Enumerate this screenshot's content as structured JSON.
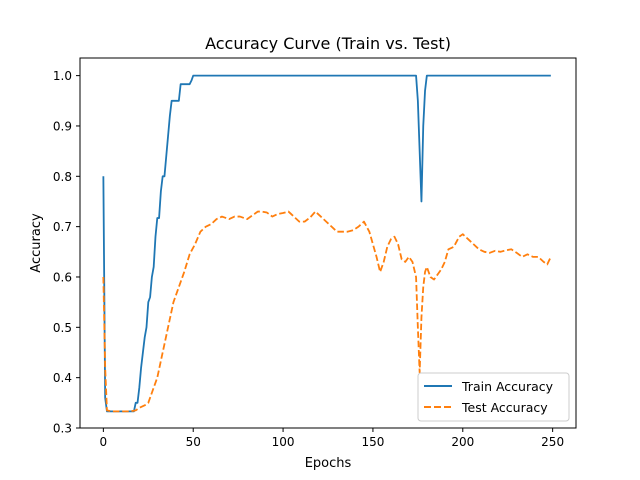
{
  "chart_data": {
    "type": "line",
    "title": "Accuracy Curve (Train vs. Test)",
    "xlabel": "Epochs",
    "ylabel": "Accuracy",
    "xlim": [
      -13,
      263
    ],
    "ylim": [
      0.3,
      1.035
    ],
    "xticks": [
      0,
      50,
      100,
      150,
      200,
      250
    ],
    "yticks": [
      0.3,
      0.4,
      0.5,
      0.6,
      0.7,
      0.8,
      0.9,
      1.0
    ],
    "xtick_labels": [
      "0",
      "50",
      "100",
      "150",
      "200",
      "250"
    ],
    "ytick_labels": [
      "0.3",
      "0.4",
      "0.5",
      "0.6",
      "0.7",
      "0.8",
      "0.9",
      "1.0"
    ],
    "grid": false,
    "legend_position": "lower-right",
    "series": [
      {
        "name": "Train Accuracy",
        "color": "#1f77b4",
        "style": "solid",
        "points": [
          [
            0,
            0.8
          ],
          [
            1,
            0.36
          ],
          [
            2,
            0.333
          ],
          [
            5,
            0.333
          ],
          [
            10,
            0.333
          ],
          [
            15,
            0.333
          ],
          [
            17,
            0.333
          ],
          [
            18,
            0.35
          ],
          [
            19,
            0.35
          ],
          [
            20,
            0.38
          ],
          [
            21,
            0.42
          ],
          [
            22,
            0.45
          ],
          [
            23,
            0.48
          ],
          [
            24,
            0.5
          ],
          [
            25,
            0.55
          ],
          [
            26,
            0.56
          ],
          [
            27,
            0.6
          ],
          [
            28,
            0.62
          ],
          [
            29,
            0.68
          ],
          [
            30,
            0.717
          ],
          [
            31,
            0.717
          ],
          [
            32,
            0.77
          ],
          [
            33,
            0.8
          ],
          [
            34,
            0.8
          ],
          [
            35,
            0.84
          ],
          [
            36,
            0.88
          ],
          [
            37,
            0.92
          ],
          [
            38,
            0.95
          ],
          [
            40,
            0.95
          ],
          [
            42,
            0.95
          ],
          [
            43,
            0.983
          ],
          [
            45,
            0.983
          ],
          [
            47,
            0.983
          ],
          [
            48,
            0.983
          ],
          [
            49,
            0.99
          ],
          [
            50,
            1.0
          ],
          [
            100,
            1.0
          ],
          [
            150,
            1.0
          ],
          [
            174,
            1.0
          ],
          [
            175,
            0.95
          ],
          [
            176,
            0.85
          ],
          [
            177,
            0.75
          ],
          [
            178,
            0.9
          ],
          [
            179,
            0.97
          ],
          [
            180,
            1.0
          ],
          [
            200,
            1.0
          ],
          [
            249,
            1.0
          ]
        ]
      },
      {
        "name": "Test Accuracy",
        "color": "#ff7f0e",
        "style": "dashed",
        "points": [
          [
            0,
            0.6
          ],
          [
            1,
            0.42
          ],
          [
            2,
            0.335
          ],
          [
            5,
            0.333
          ],
          [
            10,
            0.333
          ],
          [
            15,
            0.333
          ],
          [
            18,
            0.335
          ],
          [
            20,
            0.34
          ],
          [
            23,
            0.345
          ],
          [
            25,
            0.35
          ],
          [
            27,
            0.37
          ],
          [
            30,
            0.4
          ],
          [
            33,
            0.45
          ],
          [
            36,
            0.5
          ],
          [
            39,
            0.55
          ],
          [
            42,
            0.58
          ],
          [
            45,
            0.61
          ],
          [
            48,
            0.645
          ],
          [
            51,
            0.665
          ],
          [
            54,
            0.69
          ],
          [
            57,
            0.7
          ],
          [
            60,
            0.705
          ],
          [
            63,
            0.715
          ],
          [
            66,
            0.72
          ],
          [
            70,
            0.715
          ],
          [
            73,
            0.72
          ],
          [
            76,
            0.72
          ],
          [
            80,
            0.715
          ],
          [
            84,
            0.725
          ],
          [
            86,
            0.73
          ],
          [
            88,
            0.73
          ],
          [
            91,
            0.728
          ],
          [
            94,
            0.72
          ],
          [
            97,
            0.725
          ],
          [
            100,
            0.727
          ],
          [
            103,
            0.73
          ],
          [
            106,
            0.72
          ],
          [
            109,
            0.71
          ],
          [
            112,
            0.71
          ],
          [
            115,
            0.718
          ],
          [
            118,
            0.73
          ],
          [
            121,
            0.72
          ],
          [
            124,
            0.71
          ],
          [
            127,
            0.7
          ],
          [
            130,
            0.69
          ],
          [
            133,
            0.69
          ],
          [
            136,
            0.69
          ],
          [
            139,
            0.693
          ],
          [
            142,
            0.7
          ],
          [
            145,
            0.71
          ],
          [
            148,
            0.69
          ],
          [
            150,
            0.665
          ],
          [
            152,
            0.64
          ],
          [
            154,
            0.61
          ],
          [
            156,
            0.63
          ],
          [
            158,
            0.66
          ],
          [
            160,
            0.675
          ],
          [
            162,
            0.68
          ],
          [
            164,
            0.665
          ],
          [
            166,
            0.635
          ],
          [
            168,
            0.63
          ],
          [
            170,
            0.64
          ],
          [
            172,
            0.63
          ],
          [
            174,
            0.6
          ],
          [
            175,
            0.5
          ],
          [
            176,
            0.41
          ],
          [
            177,
            0.52
          ],
          [
            178,
            0.58
          ],
          [
            179,
            0.61
          ],
          [
            180,
            0.62
          ],
          [
            182,
            0.6
          ],
          [
            184,
            0.595
          ],
          [
            186,
            0.605
          ],
          [
            188,
            0.615
          ],
          [
            190,
            0.63
          ],
          [
            192,
            0.655
          ],
          [
            195,
            0.66
          ],
          [
            198,
            0.68
          ],
          [
            200,
            0.685
          ],
          [
            203,
            0.675
          ],
          [
            206,
            0.665
          ],
          [
            209,
            0.655
          ],
          [
            212,
            0.65
          ],
          [
            215,
            0.648
          ],
          [
            218,
            0.652
          ],
          [
            221,
            0.65
          ],
          [
            224,
            0.653
          ],
          [
            227,
            0.655
          ],
          [
            230,
            0.648
          ],
          [
            233,
            0.64
          ],
          [
            236,
            0.645
          ],
          [
            239,
            0.64
          ],
          [
            242,
            0.64
          ],
          [
            245,
            0.63
          ],
          [
            247,
            0.625
          ],
          [
            249,
            0.64
          ]
        ]
      }
    ]
  }
}
